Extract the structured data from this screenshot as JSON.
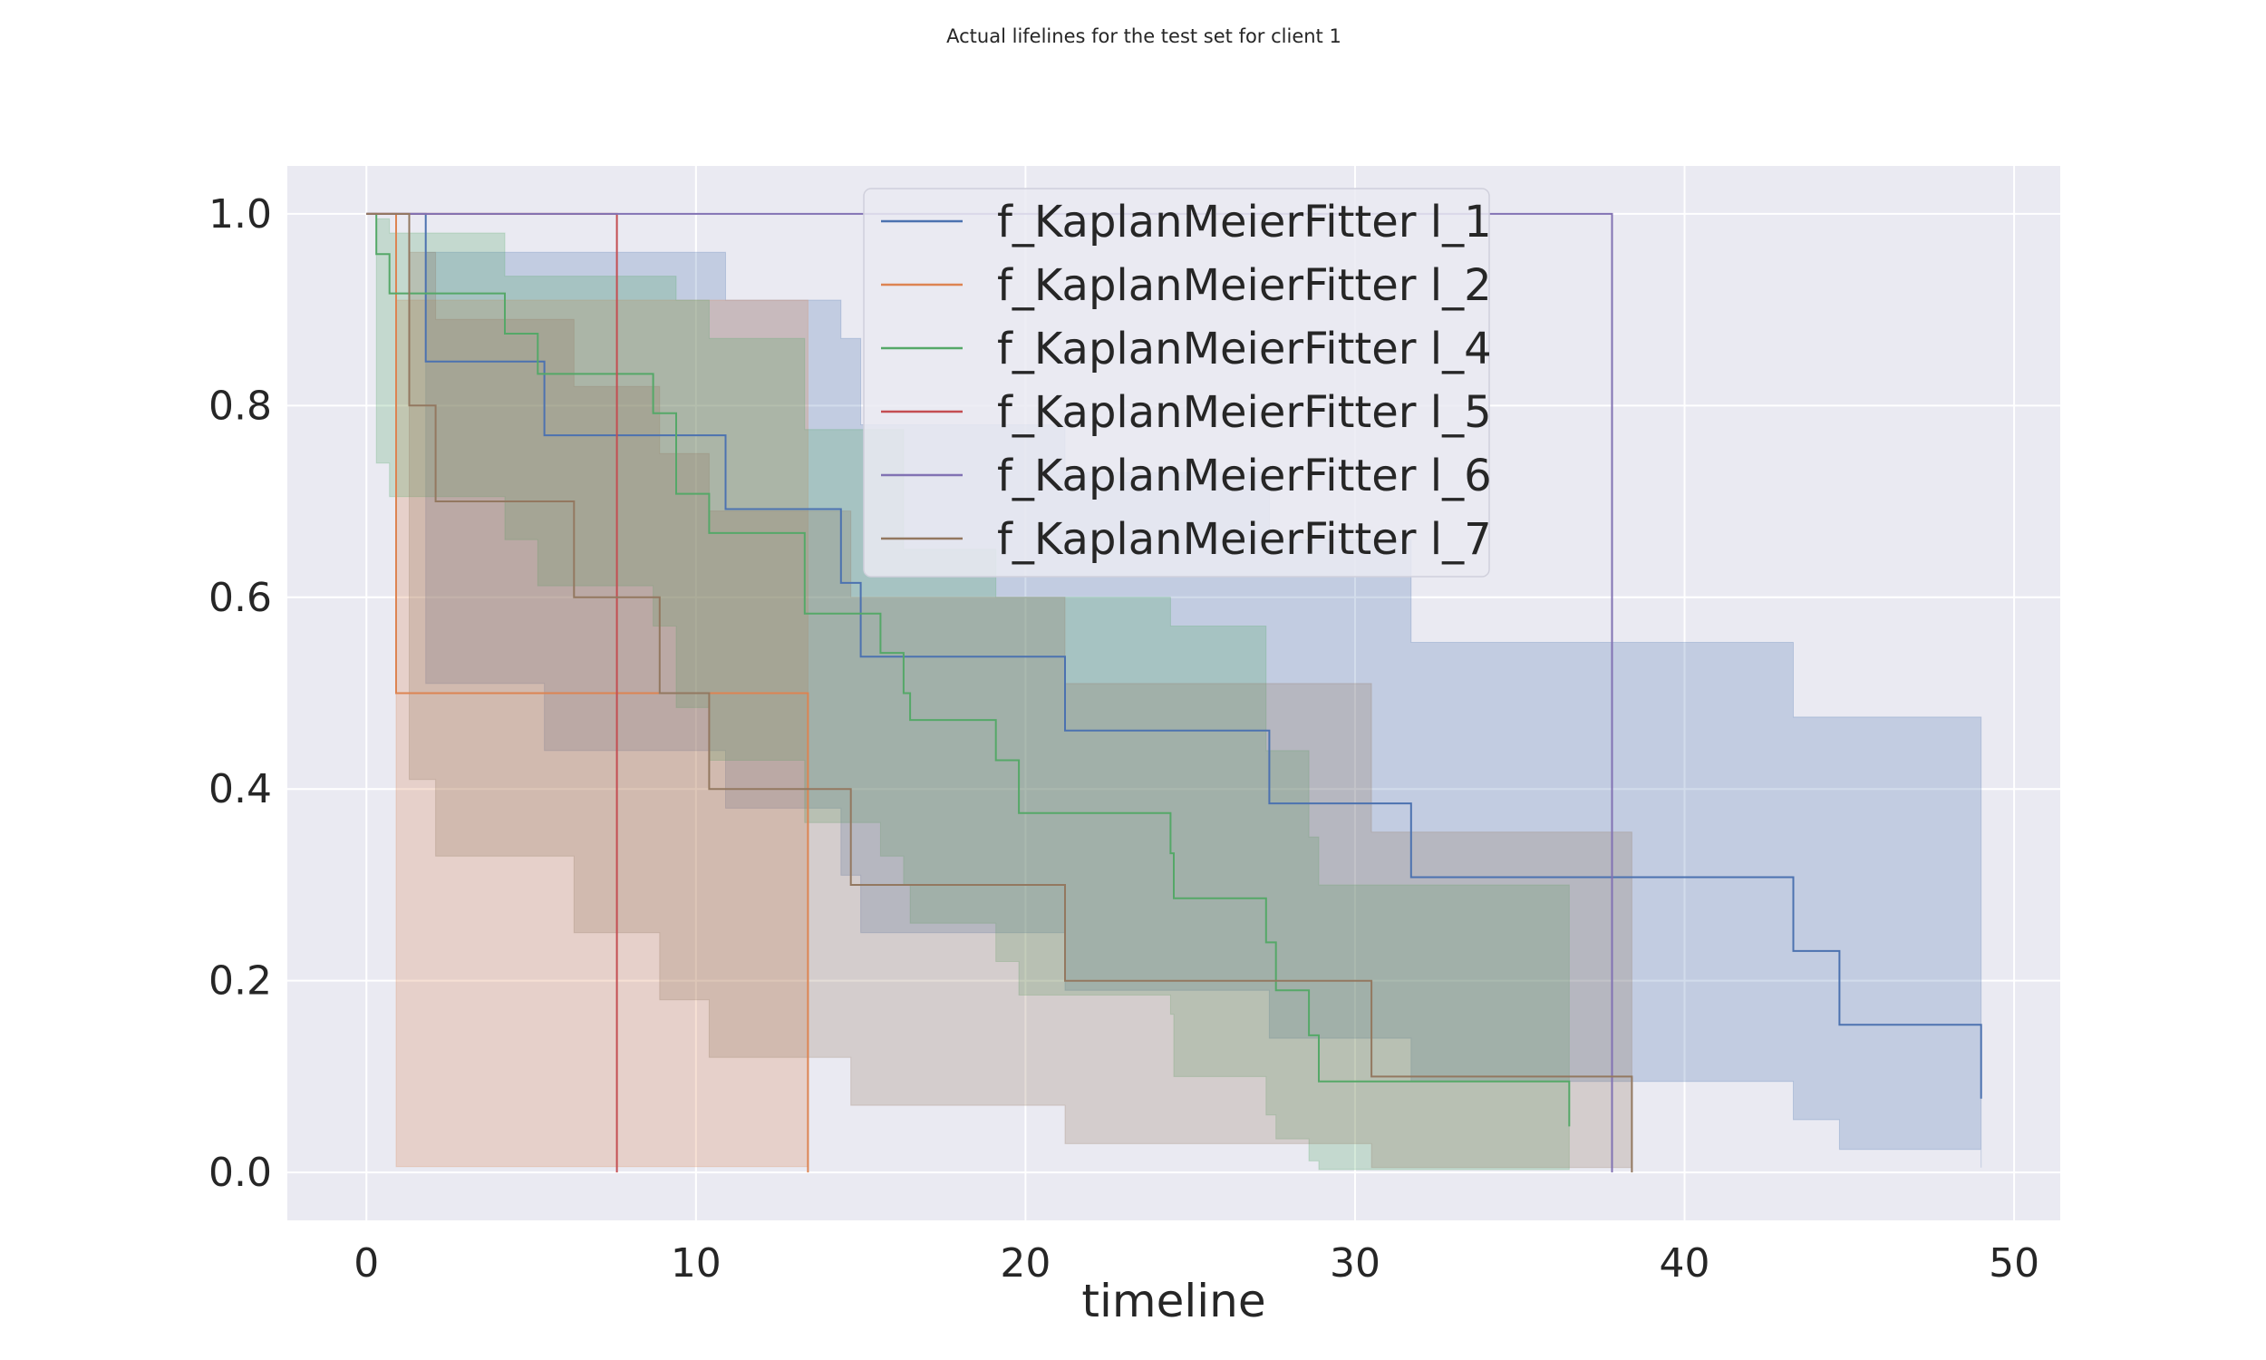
{
  "chart_data": {
    "type": "line",
    "subtype": "kaplan-meier step survival curves with confidence bands",
    "title": "Actual lifelines for the test set for client 1",
    "xlabel": "timeline",
    "ylabel": "",
    "xlim": [
      -2.4,
      51.4
    ],
    "ylim": [
      -0.05,
      1.05
    ],
    "xticks": [
      0,
      10,
      20,
      30,
      40,
      50
    ],
    "yticks": [
      0.0,
      0.2,
      0.4,
      0.6,
      0.8,
      1.0
    ],
    "xtick_labels": [
      "0",
      "10",
      "20",
      "30",
      "40",
      "50"
    ],
    "ytick_labels": [
      "0.0",
      "0.2",
      "0.4",
      "0.6",
      "0.8",
      "1.0"
    ],
    "grid": true,
    "legend_position": "top-center",
    "background": "#eaeaf2",
    "series": [
      {
        "name": "f_KaplanMeierFitter l_1",
        "color": "#4c72b0",
        "x": [
          1.8,
          5.4,
          10.9,
          14.4,
          15.0,
          21.2,
          27.4,
          31.7,
          43.3,
          44.7,
          49.0
        ],
        "y": [
          0.846,
          0.769,
          0.692,
          0.615,
          0.538,
          0.461,
          0.385,
          0.308,
          0.231,
          0.154,
          0.077
        ],
        "upper": [
          0.96,
          0.96,
          0.91,
          0.87,
          0.78,
          0.73,
          0.66,
          0.553,
          0.475,
          0.475,
          0.388
        ],
        "lower": [
          0.51,
          0.44,
          0.38,
          0.31,
          0.25,
          0.19,
          0.14,
          0.095,
          0.055,
          0.024,
          0.005
        ],
        "start": [
          0,
          1.0
        ]
      },
      {
        "name": "f_KaplanMeierFitter l_2",
        "color": "#dd8452",
        "x": [
          0.9,
          13.4
        ],
        "y": [
          0.5,
          0.0
        ],
        "upper": [
          0.91,
          0.91
        ],
        "lower": [
          0.006,
          0.006
        ],
        "start": [
          0,
          1.0
        ]
      },
      {
        "name": "f_KaplanMeierFitter l_4",
        "color": "#55a868",
        "x": [
          0.7,
          4.2,
          5.2,
          8.7,
          9.4,
          10.4,
          13.3,
          15.6,
          16.3,
          16.5,
          19.1,
          19.8,
          24.4,
          24.5,
          27.3,
          27.6,
          28.6,
          28.9,
          36.5
        ],
        "y": [
          0.917,
          0.875,
          0.833,
          0.792,
          0.708,
          0.667,
          0.583,
          0.542,
          0.5,
          0.472,
          0.43,
          0.375,
          0.333,
          0.286,
          0.24,
          0.19,
          0.143,
          0.095,
          0.048
        ],
        "upper": [
          0.98,
          0.935,
          0.935,
          0.935,
          0.91,
          0.87,
          0.775,
          0.775,
          0.65,
          0.65,
          0.6,
          0.6,
          0.57,
          0.57,
          0.44,
          0.44,
          0.35,
          0.3,
          0.195
        ],
        "lower": [
          0.705,
          0.66,
          0.612,
          0.57,
          0.485,
          0.43,
          0.365,
          0.33,
          0.3,
          0.26,
          0.22,
          0.185,
          0.165,
          0.1,
          0.06,
          0.035,
          0.012,
          0.003,
          0.003
        ],
        "start": [
          0,
          1.0
        ],
        "first_step": [
          0.3,
          0.958
        ],
        "first_band": [
          0.995,
          0.74
        ]
      },
      {
        "name": "f_KaplanMeierFitter l_5",
        "color": "#c44e52",
        "x": [
          7.6
        ],
        "y": [
          0.0
        ],
        "start": [
          0,
          1.0
        ]
      },
      {
        "name": "f_KaplanMeierFitter l_6",
        "color": "#8172b3",
        "x": [
          37.8
        ],
        "y": [
          0.0
        ],
        "start": [
          0,
          1.0
        ]
      },
      {
        "name": "f_KaplanMeierFitter l_7",
        "color": "#937860",
        "x": [
          1.3,
          2.1,
          6.3,
          8.9,
          10.4,
          14.7,
          21.2,
          30.5,
          38.4
        ],
        "y": [
          0.8,
          0.7,
          0.6,
          0.5,
          0.4,
          0.3,
          0.2,
          0.1,
          0.0
        ],
        "upper": [
          0.96,
          0.89,
          0.82,
          0.75,
          0.69,
          0.6,
          0.51,
          0.355,
          0.355
        ],
        "lower": [
          0.41,
          0.33,
          0.25,
          0.18,
          0.12,
          0.07,
          0.03,
          0.005,
          0.005
        ],
        "start": [
          0,
          1.0
        ]
      }
    ]
  }
}
